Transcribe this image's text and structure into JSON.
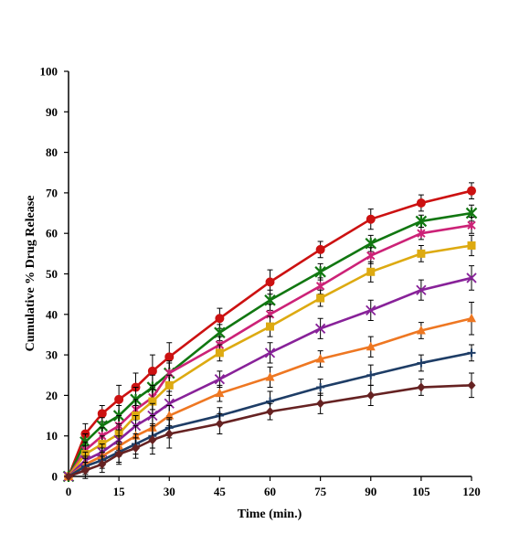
{
  "chart_data": {
    "type": "line",
    "title": "",
    "xlabel": "Time (min.)",
    "ylabel": "Cumulative  % Drug Release",
    "xlim": [
      0,
      120
    ],
    "ylim": [
      0,
      100
    ],
    "xticks": [
      0,
      15,
      30,
      45,
      60,
      75,
      90,
      105,
      120
    ],
    "yticks": [
      0,
      10,
      20,
      30,
      40,
      50,
      60,
      70,
      80,
      90,
      100
    ],
    "grid": false,
    "legend": "none",
    "x": [
      0,
      5,
      10,
      15,
      20,
      25,
      30,
      45,
      60,
      75,
      90,
      105,
      120
    ],
    "series": [
      {
        "color": "#cc1111",
        "marker": "circle",
        "values": [
          0,
          10.5,
          15.5,
          19,
          22,
          26,
          29.5,
          39,
          48,
          56,
          63.5,
          67.5,
          70.5
        ],
        "errors": [
          0,
          2.5,
          2.0,
          3.5,
          3.5,
          4.0,
          3.5,
          2.5,
          3.0,
          2.0,
          2.5,
          2.0,
          2.0
        ]
      },
      {
        "color": "#117711",
        "marker": "star",
        "values": [
          0,
          8.5,
          12.5,
          15,
          19,
          22,
          25.5,
          35.5,
          43.5,
          50.5,
          57.5,
          63,
          65
        ],
        "errors": [
          0,
          2.0,
          2.0,
          2.5,
          3.0,
          3.0,
          3.0,
          2.0,
          2.5,
          2.0,
          2.0,
          1.5,
          2.0
        ]
      },
      {
        "color": "#cc2277",
        "marker": "star-small",
        "values": [
          0,
          6.5,
          10,
          12.5,
          16.5,
          19.5,
          25.5,
          32.5,
          40,
          47,
          54.5,
          60,
          62
        ],
        "errors": [
          0,
          2.0,
          2.0,
          2.5,
          2.5,
          3.0,
          2.5,
          2.0,
          2.5,
          2.0,
          2.0,
          1.5,
          2.0
        ]
      },
      {
        "color": "#ddaa11",
        "marker": "square",
        "values": [
          0,
          5.5,
          8,
          10.5,
          15,
          18.5,
          22.5,
          30.5,
          37,
          44,
          50.5,
          55,
          57
        ],
        "errors": [
          0,
          2.0,
          2.0,
          2.5,
          2.5,
          3.0,
          2.5,
          2.0,
          2.5,
          2.0,
          2.5,
          2.0,
          2.5
        ]
      },
      {
        "color": "#882299",
        "marker": "x",
        "values": [
          0,
          4,
          6,
          9,
          12.5,
          15,
          18,
          24,
          30.5,
          36.5,
          41,
          46,
          49
        ],
        "errors": [
          0,
          2.0,
          2.0,
          2.5,
          2.5,
          3.0,
          3.0,
          2.0,
          2.5,
          2.5,
          2.5,
          2.5,
          3.0
        ]
      },
      {
        "color": "#ee7722",
        "marker": "triangle",
        "values": [
          0,
          3,
          5,
          7.5,
          10,
          12,
          15,
          20.5,
          24.5,
          29,
          32,
          36,
          39
        ],
        "errors": [
          0,
          2.0,
          2.0,
          2.5,
          2.5,
          3.0,
          2.5,
          2.0,
          2.5,
          2.0,
          2.5,
          2.0,
          4.0
        ]
      },
      {
        "color": "#1e3d66",
        "marker": "plus",
        "values": [
          0,
          2.5,
          4,
          6,
          8,
          10,
          12,
          15,
          18.5,
          22,
          25,
          28,
          30.5
        ],
        "errors": [
          0,
          2.0,
          2.0,
          2.5,
          2.5,
          3.0,
          2.5,
          2.0,
          2.5,
          2.0,
          2.5,
          2.0,
          2.0
        ]
      },
      {
        "color": "#662222",
        "marker": "diamond",
        "values": [
          0,
          1.5,
          3,
          5.5,
          7,
          9,
          10.5,
          13,
          16,
          18,
          20,
          22,
          22.5
        ],
        "errors": [
          0,
          2.0,
          2.0,
          2.5,
          2.5,
          3.5,
          3.5,
          2.5,
          2.0,
          2.5,
          2.5,
          2.0,
          3.0
        ]
      }
    ]
  }
}
